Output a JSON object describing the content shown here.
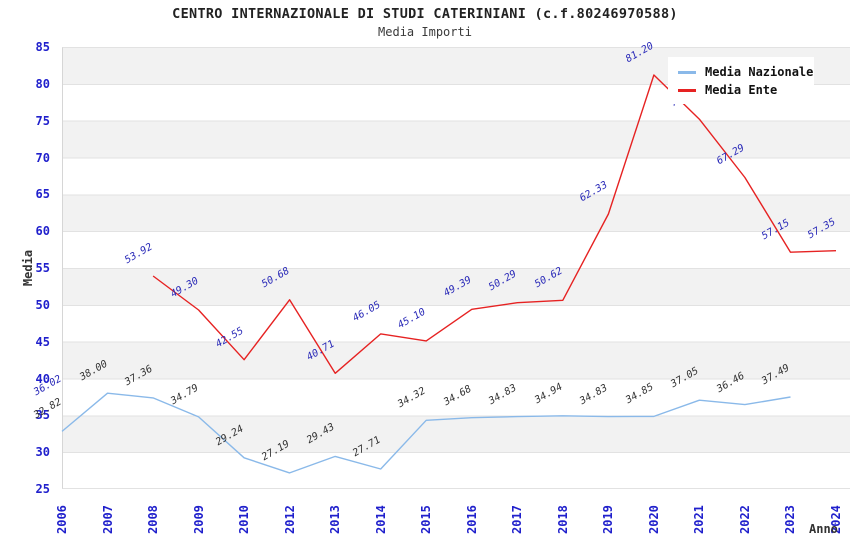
{
  "header": {
    "title": "CENTRO INTERNAZIONALE DI STUDI CATERINIANI (c.f.80246970588)",
    "subtitle": "Media Importi"
  },
  "legend": {
    "items": [
      {
        "label": "Media Nazionale",
        "color": "#8ab9e9"
      },
      {
        "label": "Media Ente",
        "color": "#e62222"
      }
    ]
  },
  "axes": {
    "y": {
      "label": "Media",
      "min": 25,
      "max": 85,
      "step": 5,
      "ticks": [
        85,
        80,
        75,
        70,
        65,
        60,
        55,
        50,
        45,
        40,
        35,
        30,
        25
      ]
    },
    "x": {
      "label": "Anno",
      "categories": [
        "2006",
        "2007",
        "2008",
        "2009",
        "2010",
        "2012",
        "2013",
        "2014",
        "2015",
        "2016",
        "2017",
        "2018",
        "2019",
        "2020",
        "2021",
        "2022",
        "2023",
        "2024"
      ]
    }
  },
  "chart_data": {
    "type": "line",
    "title": "CENTRO INTERNAZIONALE DI STUDI CATERINIANI (c.f.80246970588)",
    "subtitle": "Media Importi",
    "xlabel": "Anno",
    "ylabel": "Media",
    "ylim": [
      25,
      85
    ],
    "grid": true,
    "legend_position": "top-right",
    "categories": [
      "2006",
      "2007",
      "2008",
      "2009",
      "2010",
      "2012",
      "2013",
      "2014",
      "2015",
      "2016",
      "2017",
      "2018",
      "2019",
      "2020",
      "2021",
      "2022",
      "2023",
      "2024"
    ],
    "series": [
      {
        "name": "Media Nazionale",
        "color": "#8ab9e9",
        "label_color": "#333333",
        "values": [
          32.82,
          38.0,
          37.36,
          34.79,
          29.24,
          27.19,
          29.43,
          27.71,
          34.32,
          34.68,
          34.83,
          34.94,
          34.83,
          34.85,
          37.05,
          36.46,
          37.49,
          null
        ]
      },
      {
        "name": "Media Ente",
        "color": "#e62222",
        "label_color": "#2a2ab8",
        "values": [
          36.02,
          null,
          53.92,
          49.3,
          42.55,
          50.68,
          40.71,
          46.05,
          45.1,
          49.39,
          50.29,
          50.62,
          62.33,
          81.2,
          75.2,
          67.29,
          57.15,
          57.35
        ]
      }
    ],
    "colors": {
      "band_gray": "#f2f2f2",
      "gridline": "#e2e2e2",
      "tick_blue": "#2020cc"
    }
  }
}
